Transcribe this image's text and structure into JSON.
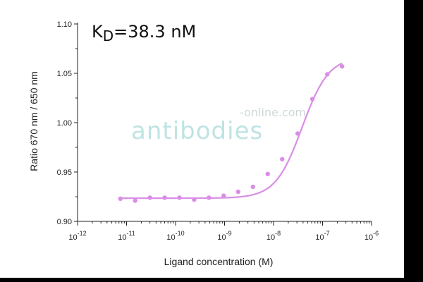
{
  "annotation": {
    "k": "K",
    "sub": "D",
    "rest": "=38.3 nM"
  },
  "watermark": {
    "main": "antibodies",
    "suffix": "-online.com"
  },
  "chart_data": {
    "type": "scatter",
    "title": "",
    "xlabel": "Ligand concentration (M)",
    "ylabel": "Ratio 670 nm / 650 nm",
    "xscale": "log",
    "xlim": [
      1e-12,
      1e-06
    ],
    "ylim": [
      0.9,
      1.1
    ],
    "grid": false,
    "color": "#d98ee6",
    "x_tick_labels": [
      {
        "base": "10",
        "exp": "-12"
      },
      {
        "base": "10",
        "exp": "-11"
      },
      {
        "base": "10",
        "exp": "-10"
      },
      {
        "base": "10",
        "exp": "-9"
      },
      {
        "base": "10",
        "exp": "-8"
      },
      {
        "base": "10",
        "exp": "-7"
      },
      {
        "base": "10",
        "exp": "-6"
      }
    ],
    "y_tick_labels": [
      "0.90",
      "0.95",
      "1.00",
      "1.05",
      "1.10"
    ],
    "y_ticks": [
      0.9,
      0.95,
      1.0,
      1.05,
      1.1
    ],
    "points": [
      {
        "x": 7.5e-12,
        "y": 0.923
      },
      {
        "x": 1.5e-11,
        "y": 0.921
      },
      {
        "x": 3e-11,
        "y": 0.924
      },
      {
        "x": 6e-11,
        "y": 0.924
      },
      {
        "x": 1.2e-10,
        "y": 0.924
      },
      {
        "x": 2.4e-10,
        "y": 0.922
      },
      {
        "x": 4.8e-10,
        "y": 0.924
      },
      {
        "x": 9.6e-10,
        "y": 0.926
      },
      {
        "x": 1.9e-09,
        "y": 0.93
      },
      {
        "x": 3.8e-09,
        "y": 0.935
      },
      {
        "x": 7.6e-09,
        "y": 0.948
      },
      {
        "x": 1.5e-08,
        "y": 0.963
      },
      {
        "x": 3.1e-08,
        "y": 0.989
      },
      {
        "x": 6.2e-08,
        "y": 1.024
      },
      {
        "x": 1.25e-07,
        "y": 1.049
      },
      {
        "x": 2.5e-07,
        "y": 1.057
      }
    ],
    "fit": {
      "bottom": 0.9235,
      "top": 1.067,
      "kd": 3.83e-08,
      "hill": 1.6
    }
  }
}
